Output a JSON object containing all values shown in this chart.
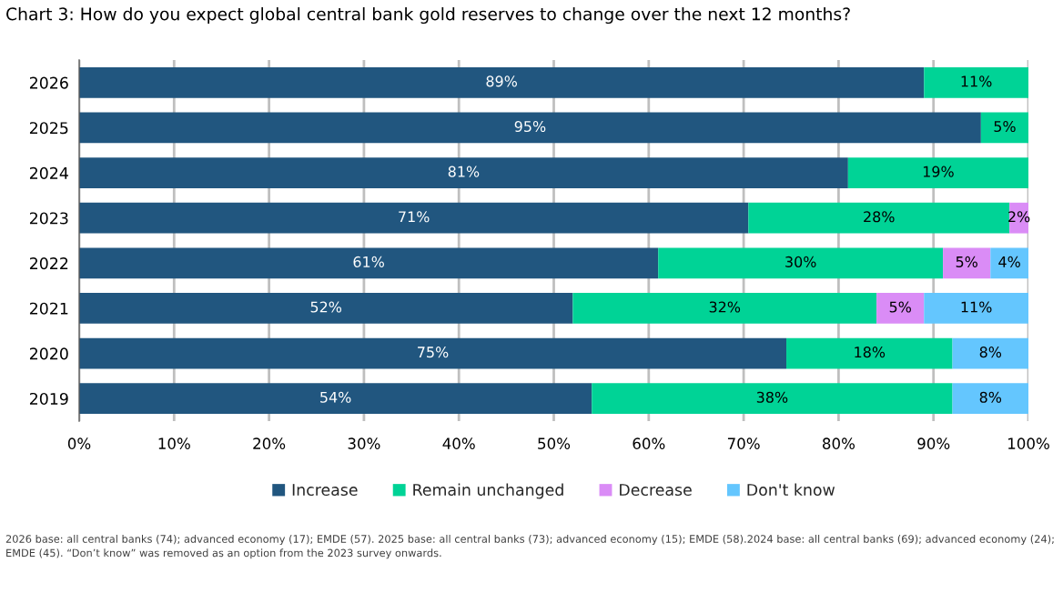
{
  "chart_data": {
    "type": "bar",
    "orientation": "horizontal",
    "stacked": true,
    "title": "Chart 3: How do you expect global central bank gold reserves to change over the next 12 months?",
    "categories": [
      "2026",
      "2025",
      "2024",
      "2023",
      "2022",
      "2021",
      "2020",
      "2019"
    ],
    "series": [
      {
        "name": "Increase",
        "color": "#21567f",
        "values": [
          89,
          95,
          81,
          70.5,
          61,
          52,
          74.5,
          54
        ],
        "value_labels": [
          "89%",
          "95%",
          "81%",
          "71%",
          "61%",
          "52%",
          "75%",
          "54%"
        ]
      },
      {
        "name": "Remain unchanged",
        "color": "#00d396",
        "values": [
          11,
          5,
          19,
          27.5,
          30,
          32,
          17.5,
          38
        ],
        "value_labels": [
          "11%",
          "5%",
          "19%",
          "28%",
          "30%",
          "32%",
          "18%",
          "38%"
        ]
      },
      {
        "name": "Decrease",
        "color": "#da8cf6",
        "values": [
          null,
          null,
          null,
          2,
          5,
          5,
          null,
          null
        ],
        "value_labels": [
          null,
          null,
          null,
          "2%",
          "5%",
          "5%",
          null,
          null
        ]
      },
      {
        "name": "Don't know",
        "color": "#64c6fe",
        "values": [
          null,
          null,
          null,
          null,
          4,
          11,
          8,
          8
        ],
        "value_labels": [
          null,
          null,
          null,
          null,
          "4%",
          "11%",
          "8%",
          "8%"
        ]
      }
    ],
    "xlim": [
      0,
      100
    ],
    "xticks": [
      {
        "value": 0,
        "label": "0%"
      },
      {
        "value": 10,
        "label": "10%"
      },
      {
        "value": 20,
        "label": "20%"
      },
      {
        "value": 30,
        "label": "30%"
      },
      {
        "value": 40,
        "label": "40%"
      },
      {
        "value": 50,
        "label": "50%"
      },
      {
        "value": 60,
        "label": "60%"
      },
      {
        "value": 70,
        "label": "70%"
      },
      {
        "value": 80,
        "label": "80%"
      },
      {
        "value": 90,
        "label": "90%"
      },
      {
        "value": 100,
        "label": "100%"
      }
    ],
    "grid": "x",
    "legend": "bottom",
    "annotations": [
      "2026 base: all central banks (74); advanced economy (17); EMDE (57). 2025 base: all central banks (73); advanced economy (15); EMDE (58).2024 base: all central banks (69); advanced economy (24); EMDE (45). “Don’t know” was removed as an option from the 2023 survey onwards."
    ]
  }
}
